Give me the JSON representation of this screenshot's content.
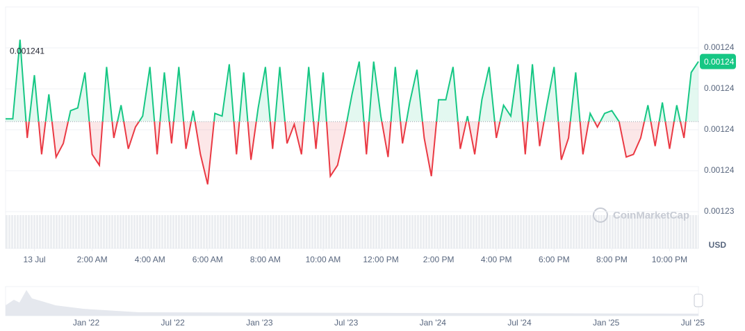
{
  "chart_data": {
    "type": "line",
    "x": [
      -1,
      -0.75,
      -0.5,
      -0.25,
      0,
      0.25,
      0.5,
      0.75,
      1,
      1.25,
      1.5,
      1.75,
      2,
      2.25,
      2.5,
      2.75,
      3,
      3.25,
      3.5,
      3.75,
      4,
      4.25,
      4.5,
      4.75,
      5,
      5.25,
      5.5,
      5.75,
      6,
      6.25,
      6.5,
      6.75,
      7,
      7.25,
      7.5,
      7.75,
      8,
      8.25,
      8.5,
      8.75,
      9,
      9.25,
      9.5,
      9.75,
      10,
      10.25,
      10.5,
      10.75,
      11,
      11.25,
      11.5,
      11.75,
      12,
      12.25,
      12.5,
      12.75,
      13,
      13.25,
      13.5,
      13.75,
      14,
      14.25,
      14.5,
      14.75,
      15,
      15.25,
      15.5,
      15.75,
      16,
      16.25,
      16.5,
      16.75,
      17,
      17.25,
      17.5,
      17.75,
      18,
      18.25,
      18.5,
      18.75,
      19,
      19.25,
      19.5,
      19.75,
      20,
      20.25,
      20.5,
      20.75,
      21,
      21.25,
      21.5,
      21.75,
      22,
      22.25,
      22.5,
      22.75,
      23
    ],
    "values": [
      0.0012379,
      0.0012379,
      0.0012408,
      0.0012372,
      0.0012395,
      0.0012366,
      0.0012388,
      0.0012365,
      0.001237,
      0.0012382,
      0.0012383,
      0.0012396,
      0.0012366,
      0.0012362,
      0.0012398,
      0.0012372,
      0.0012384,
      0.0012368,
      0.0012376,
      0.001238,
      0.0012398,
      0.0012366,
      0.0012396,
      0.001237,
      0.0012398,
      0.0012368,
      0.0012382,
      0.0012366,
      0.0012355,
      0.0012381,
      0.001238,
      0.0012399,
      0.0012366,
      0.0012396,
      0.0012364,
      0.0012383,
      0.0012398,
      0.0012368,
      0.0012398,
      0.001237,
      0.0012377,
      0.0012366,
      0.0012398,
      0.0012368,
      0.0012396,
      0.0012358,
      0.0012362,
      0.0012374,
      0.0012388,
      0.00124,
      0.0012366,
      0.00124,
      0.001238,
      0.0012365,
      0.0012398,
      0.001237,
      0.0012385,
      0.0012397,
      0.0012372,
      0.0012358,
      0.0012386,
      0.0012386,
      0.0012398,
      0.0012368,
      0.001238,
      0.0012366,
      0.0012386,
      0.0012398,
      0.0012372,
      0.0012384,
      0.001238,
      0.0012399,
      0.0012366,
      0.0012399,
      0.0012369,
      0.0012384,
      0.0012398,
      0.0012364,
      0.0012372,
      0.0012396,
      0.0012366,
      0.0012381,
      0.0012376,
      0.0012381,
      0.0012382,
      0.0012378,
      0.0012365,
      0.0012366,
      0.0012372,
      0.0012384,
      0.0012369,
      0.0012385,
      0.0012368,
      0.0012384,
      0.0012372,
      0.0012396,
      0.00124
    ],
    "reference": 0.0012378,
    "up_color": "#16c784",
    "down_color": "#ea3943",
    "high_label": "0.001241",
    "last_label": "0.00124",
    "xlim": [
      -1,
      23
    ],
    "xticks": [
      {
        "value": 0,
        "label": "13 Jul"
      },
      {
        "value": 2,
        "label": "2:00 AM"
      },
      {
        "value": 4,
        "label": "4:00 AM"
      },
      {
        "value": 6,
        "label": "6:00 AM"
      },
      {
        "value": 8,
        "label": "8:00 AM"
      },
      {
        "value": 10,
        "label": "10:00 AM"
      },
      {
        "value": 12,
        "label": "12:00 PM"
      },
      {
        "value": 14,
        "label": "2:00 PM"
      },
      {
        "value": 16,
        "label": "4:00 PM"
      },
      {
        "value": 18,
        "label": "6:00 PM"
      },
      {
        "value": 20,
        "label": "8:00 PM"
      },
      {
        "value": 22,
        "label": "10:00 PM"
      }
    ],
    "ylim": [
      0.0012345,
      0.001242
    ],
    "yticks": [
      {
        "value": 0.0012405,
        "label": "0.00124"
      },
      {
        "value": 0.001239,
        "label": "0.00124"
      },
      {
        "value": 0.0012375,
        "label": "0.00124"
      },
      {
        "value": 0.001236,
        "label": "0.00124"
      },
      {
        "value": 0.0012345,
        "label": "0.00123"
      }
    ],
    "grid": true,
    "currency": "USD",
    "watermark": "CoinMarketCap",
    "navigator": {
      "labels": [
        "Jan '22",
        "Jul '22",
        "Jan '23",
        "Jul '23",
        "Jan '24",
        "Jul '24",
        "Jan '25",
        "Jul '25"
      ]
    }
  }
}
